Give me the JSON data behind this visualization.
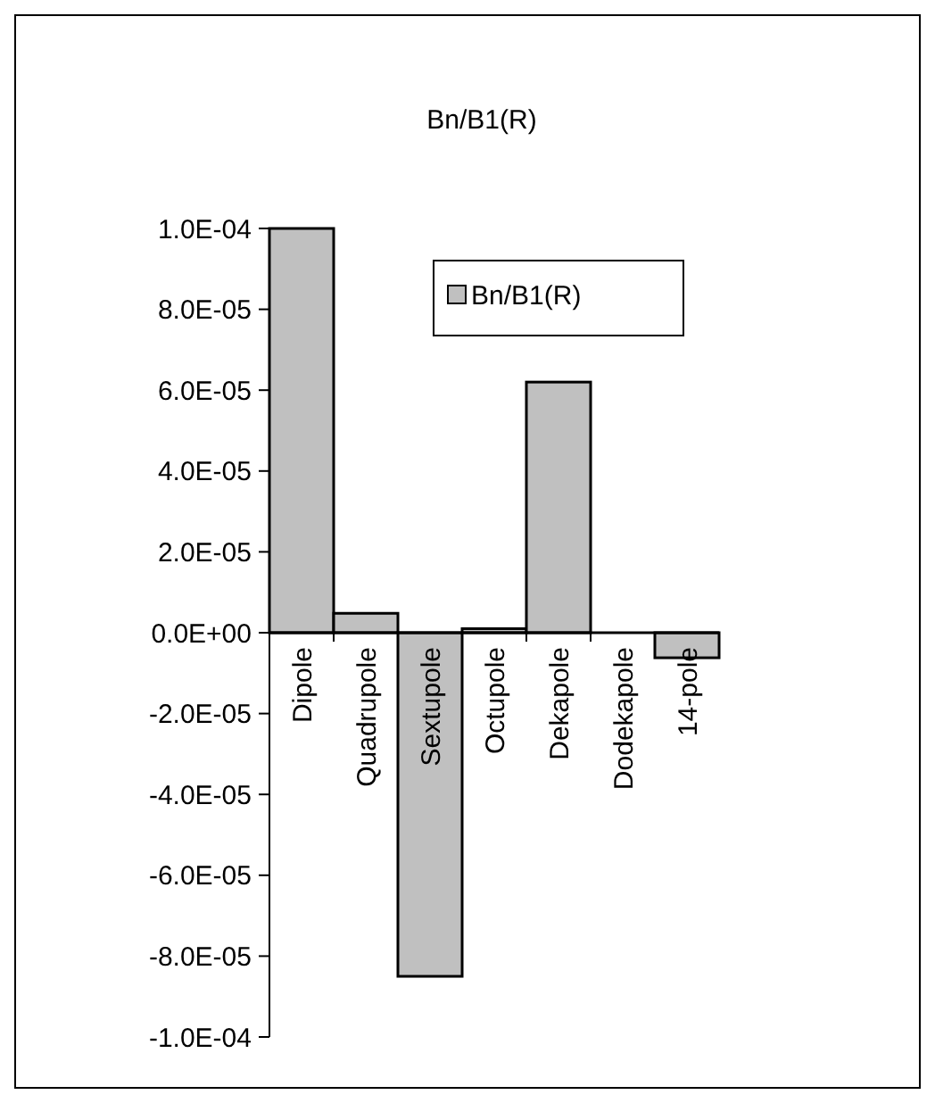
{
  "chart_data": {
    "type": "bar",
    "title": "Bn/B1(R)",
    "categories": [
      "Dipole",
      "Quadrupole",
      "Sextupole",
      "Octupole",
      "Dekapole",
      "Dodekapole",
      "14-pole"
    ],
    "series": [
      {
        "name": "Bn/B1(R)",
        "color": "#c0c0c0",
        "values": [
          0.0001,
          4.8e-06,
          -8.5e-05,
          1e-06,
          6.2e-05,
          0,
          -6.2e-06
        ]
      }
    ],
    "ylim": [
      -0.0001,
      0.0001
    ],
    "yticks": [
      {
        "value": 0.0001,
        "label": "1.0E-04"
      },
      {
        "value": 8e-05,
        "label": "8.0E-05"
      },
      {
        "value": 6e-05,
        "label": "6.0E-05"
      },
      {
        "value": 4e-05,
        "label": "4.0E-05"
      },
      {
        "value": 2e-05,
        "label": "2.0E-05"
      },
      {
        "value": 0,
        "label": "0.0E+00"
      },
      {
        "value": -2e-05,
        "label": "-2.0E-05"
      },
      {
        "value": -4e-05,
        "label": "-4.0E-05"
      },
      {
        "value": -6e-05,
        "label": "-6.0E-05"
      },
      {
        "value": -8e-05,
        "label": "-8.0E-05"
      },
      {
        "value": -0.0001,
        "label": "-1.0E-04"
      }
    ],
    "legend": "top right",
    "grid": false
  }
}
